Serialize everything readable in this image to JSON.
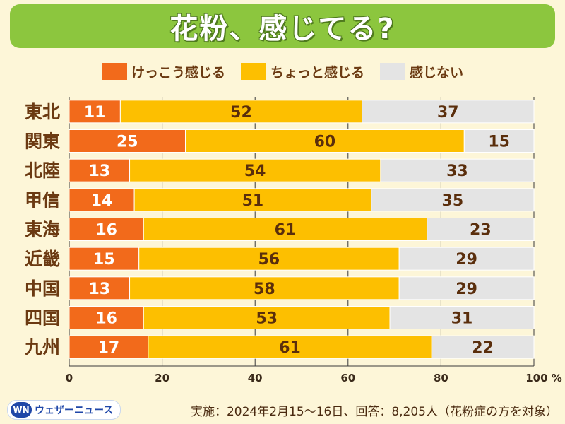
{
  "title": "花粉、感じてる?",
  "legend": [
    {
      "label": "けっこう感じる",
      "color": "#f26a1b"
    },
    {
      "label": "ちょっと感じる",
      "color": "#fdbf00"
    },
    {
      "label": "感じない",
      "color": "#e4e4e4"
    }
  ],
  "chart_data": {
    "type": "bar",
    "orientation": "horizontal",
    "stacked": true,
    "categories": [
      "東北",
      "関東",
      "北陸",
      "甲信",
      "東海",
      "近畿",
      "中国",
      "四国",
      "九州"
    ],
    "series": [
      {
        "name": "けっこう感じる",
        "color": "#f26a1b",
        "label_color": "#ffffff",
        "values": [
          11,
          25,
          13,
          14,
          16,
          15,
          13,
          16,
          17
        ]
      },
      {
        "name": "ちょっと感じる",
        "color": "#fdbf00",
        "label_color": "#5a2e0c",
        "values": [
          52,
          60,
          54,
          51,
          61,
          56,
          58,
          53,
          61
        ]
      },
      {
        "name": "感じない",
        "color": "#e4e4e4",
        "label_color": "#5a2e0c",
        "values": [
          37,
          15,
          33,
          35,
          23,
          29,
          29,
          31,
          22
        ]
      }
    ],
    "xlim": [
      0,
      100
    ],
    "xticks": [
      0,
      20,
      40,
      60,
      80,
      100
    ],
    "xtick_labels": [
      "0",
      "20",
      "40",
      "60",
      "80",
      "100 %"
    ],
    "grid": true
  },
  "footer": {
    "logo_mark": "WN",
    "logo_text": "ウェザーニュース",
    "note": "実施：2024年2月15～16日、回答：8,205人（花粉症の方を対象）"
  }
}
